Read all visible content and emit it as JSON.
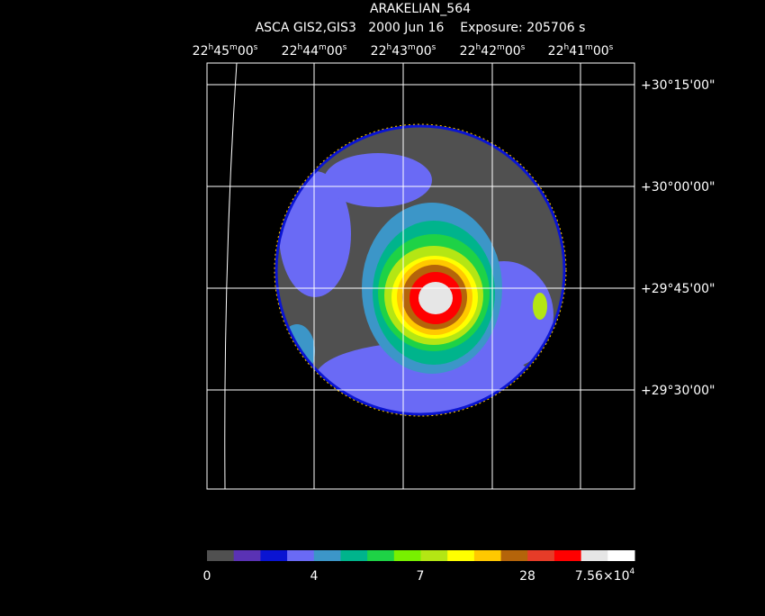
{
  "title": "ARAKELIAN_564",
  "subtitle": "ASCA GIS2,GIS3   2000 Jun 16    Exposure: 205706 s",
  "ra_labels": [
    [
      "22",
      "h",
      "45",
      "m",
      "00",
      "s"
    ],
    [
      "22",
      "h",
      "44",
      "m",
      "00",
      "s"
    ],
    [
      "22",
      "h",
      "43",
      "m",
      "00",
      "s"
    ],
    [
      "22",
      "h",
      "42",
      "m",
      "00",
      "s"
    ],
    [
      "22",
      "h",
      "41",
      "m",
      "00",
      "s"
    ]
  ],
  "dec_labels": [
    "+30°15'00\"",
    "+30°00'00\"",
    "+29°45'00\"",
    "+29°30'00\""
  ],
  "colorbar": {
    "colors": [
      "#505050",
      "#5a32b4",
      "#0a14d2",
      "#6a6af5",
      "#3c96c8",
      "#00b48c",
      "#1ed246",
      "#78f000",
      "#b4e614",
      "#ffff00",
      "#ffc800",
      "#b4640a",
      "#e63c28",
      "#ff0000",
      "#e6e6e6",
      "#ffffff"
    ],
    "labels": [
      "0",
      "4",
      "7",
      "28",
      [
        "7.56×10",
        "4"
      ]
    ]
  }
}
